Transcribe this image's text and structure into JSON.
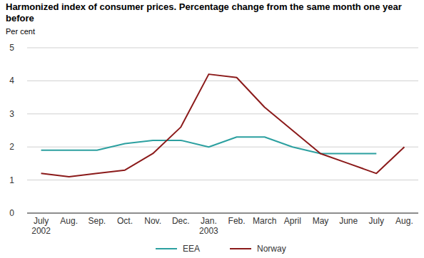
{
  "chart_data": {
    "type": "line",
    "title": "Harmonized index of consumer prices. Percentage change from the same month one year before",
    "y_label": "Per cent",
    "categories": [
      "July 2002",
      "Aug.",
      "Sep.",
      "Oct.",
      "Nov.",
      "Dec.",
      "Jan. 2003",
      "Feb.",
      "March",
      "April",
      "May",
      "June",
      "July",
      "Aug."
    ],
    "series": [
      {
        "name": "EEA",
        "color": "#2ca0a0",
        "values": [
          1.9,
          1.9,
          1.9,
          2.1,
          2.2,
          2.2,
          2.0,
          2.3,
          2.3,
          2.0,
          1.8,
          1.8,
          1.8,
          null
        ]
      },
      {
        "name": "Norway",
        "color": "#8b1a1a",
        "values": [
          1.2,
          1.1,
          1.2,
          1.3,
          1.8,
          2.6,
          4.2,
          4.1,
          3.2,
          2.5,
          1.8,
          1.5,
          1.2,
          2.0
        ]
      }
    ],
    "ylim": [
      0,
      5
    ],
    "yticks": [
      0,
      1,
      2,
      3,
      4,
      5
    ],
    "grid": true,
    "legend": "bottom"
  }
}
